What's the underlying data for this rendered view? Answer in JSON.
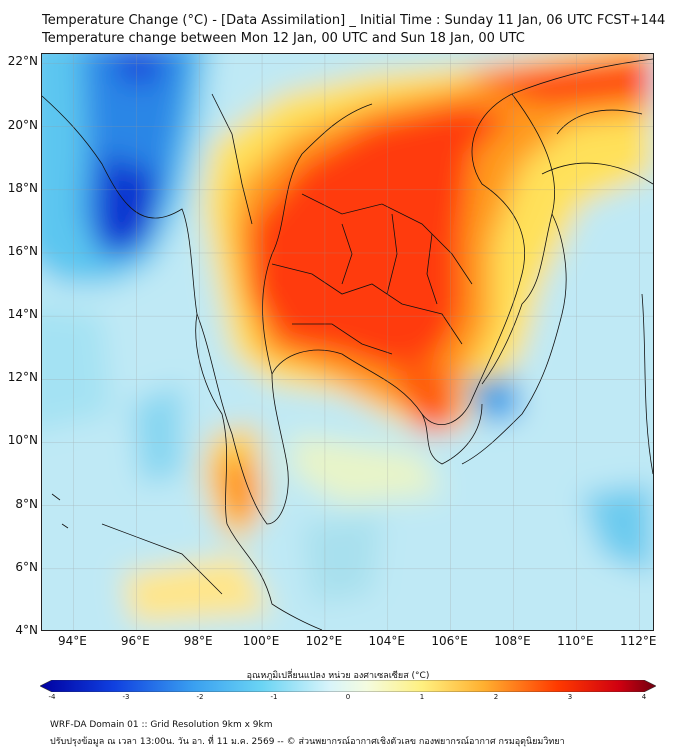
{
  "header": {
    "title_line1": "Temperature Change (°C) - [Data Assimilation] _ Initial Time : Sunday 11 Jan, 06 UTC FCST+144",
    "title_line2": "Temperature change between Mon 12 Jan, 00 UTC and Sun 18 Jan, 00 UTC"
  },
  "map": {
    "lat_labels": [
      "22°N",
      "20°N",
      "18°N",
      "16°N",
      "14°N",
      "12°N",
      "10°N",
      "8°N",
      "6°N",
      "4°N"
    ],
    "lon_labels": [
      "94°E",
      "96°E",
      "98°E",
      "100°E",
      "102°E",
      "104°E",
      "106°E",
      "108°E",
      "110°E",
      "112°E"
    ],
    "lat_range": [
      4,
      22.3
    ],
    "lon_range": [
      93,
      112.5
    ],
    "warm_color": "#ff2200",
    "cold_color": "#0a30d0",
    "ocean_mild_color": "#aee6f4"
  },
  "colorbar": {
    "title": "อุณหภูมิเปลี่ยนแปลง หน่วย องศาเซลเซียส (°C)",
    "ticks": [
      "-4",
      "-3",
      "-2",
      "-1",
      "0",
      "1",
      "2",
      "3",
      "4"
    ],
    "range": [
      -4,
      4
    ]
  },
  "footer": {
    "line1": "WRF-DA Domain 01 :: Grid Resolution 9km x 9km",
    "line2": "ปรับปรุงข้อมูล ณ เวลา 13:00น. วัน อา. ที่ 11 ม.ค. 2569 -- © ส่วนพยากรณ์อากาศเชิงตัวเลข กองพยากรณ์อากาศ กรมอุตุนิยมวิทยา"
  }
}
